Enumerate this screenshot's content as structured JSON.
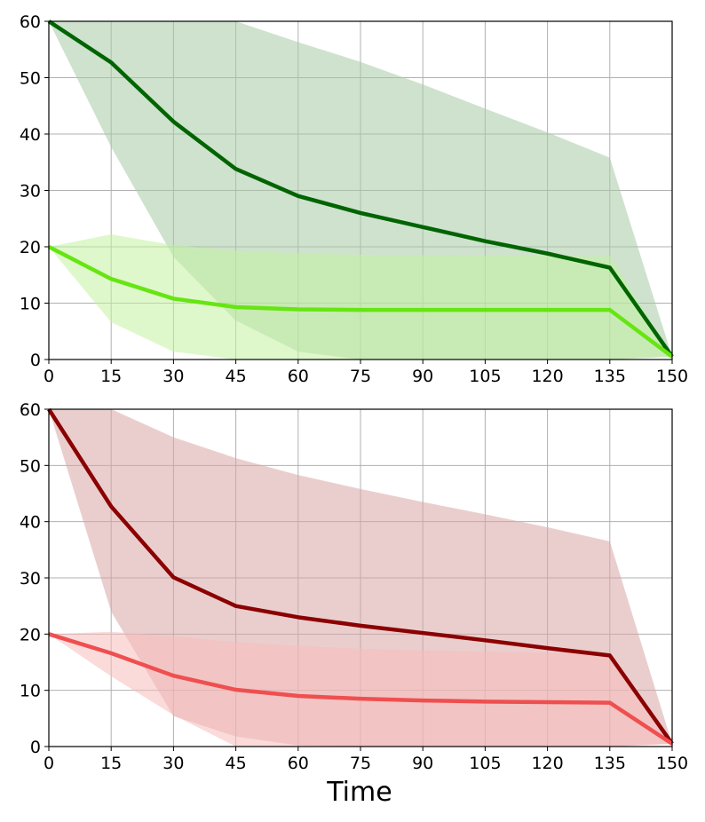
{
  "chart_data": [
    {
      "type": "line",
      "xlabel": "",
      "ylabel": "",
      "xlim": [
        0,
        150
      ],
      "ylim": [
        0,
        60
      ],
      "xticks": [
        0,
        15,
        30,
        45,
        60,
        75,
        90,
        105,
        120,
        135,
        150
      ],
      "yticks": [
        0,
        10,
        20,
        30,
        40,
        50,
        60
      ],
      "grid": true,
      "x": [
        0,
        15,
        30,
        45,
        60,
        75,
        90,
        105,
        120,
        135,
        150
      ],
      "series": [
        {
          "color": "#006400",
          "band_color": "#a5cba5",
          "values": [
            60,
            52.7,
            42.2,
            33.8,
            29.0,
            26.0,
            23.5,
            21.0,
            18.8,
            16.3,
            0.5
          ],
          "band_upper": [
            60,
            60,
            60,
            60,
            56.3,
            52.8,
            48.8,
            44.5,
            40.3,
            35.8,
            0.5
          ],
          "band_lower": [
            60,
            37.7,
            18.2,
            6.9,
            1.4,
            0,
            0,
            0,
            0,
            0,
            0.5
          ]
        },
        {
          "color": "#66e512",
          "band_color": "#c2f2a0",
          "values": [
            20,
            14.3,
            10.8,
            9.3,
            8.9,
            8.8,
            8.8,
            8.8,
            8.8,
            8.8,
            0.5
          ],
          "band_upper": [
            20,
            22.2,
            20.3,
            19.3,
            18.8,
            18.6,
            18.5,
            18.4,
            18.4,
            18.3,
            0.5
          ],
          "band_lower": [
            20,
            6.6,
            1.4,
            0,
            0,
            0,
            0,
            0,
            0,
            0,
            0.5
          ]
        }
      ]
    },
    {
      "type": "line",
      "xlabel": "Time",
      "ylabel": "",
      "xlim": [
        0,
        150
      ],
      "ylim": [
        0,
        60
      ],
      "xticks": [
        0,
        15,
        30,
        45,
        60,
        75,
        90,
        105,
        120,
        135,
        150
      ],
      "yticks": [
        0,
        10,
        20,
        30,
        40,
        50,
        60
      ],
      "grid": true,
      "x": [
        0,
        15,
        30,
        45,
        60,
        75,
        90,
        105,
        120,
        135,
        150
      ],
      "series": [
        {
          "color": "#8b0000",
          "band_color": "#d9a5a5",
          "values": [
            60,
            42.7,
            30.1,
            25.0,
            23.0,
            21.5,
            20.2,
            18.9,
            17.5,
            16.2,
            0.5
          ],
          "band_upper": [
            60,
            60,
            55.0,
            51.3,
            48.3,
            45.8,
            43.5,
            41.3,
            39.0,
            36.5,
            0.5
          ],
          "band_lower": [
            60,
            24.0,
            5.4,
            1.8,
            0.2,
            0,
            0,
            0,
            0,
            0,
            0.5
          ]
        },
        {
          "color": "#ef4f4f",
          "band_color": "#f7bcbc",
          "values": [
            20,
            16.6,
            12.6,
            10.1,
            9.0,
            8.5,
            8.2,
            8.0,
            7.9,
            7.8,
            0.5
          ],
          "band_upper": [
            20,
            20.4,
            19.6,
            18.6,
            17.9,
            17.4,
            17.1,
            16.9,
            16.7,
            16.6,
            0.5
          ],
          "band_lower": [
            20,
            12.5,
            5.6,
            0,
            0,
            0,
            0,
            0,
            0,
            0,
            0.5
          ]
        }
      ]
    }
  ]
}
